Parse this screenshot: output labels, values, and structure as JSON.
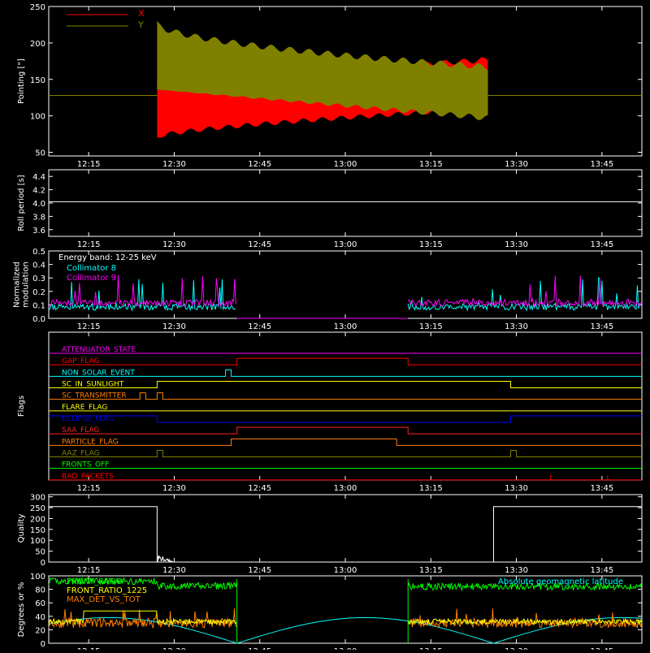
{
  "time_ticks": [
    "12:15",
    "12:30",
    "12:45",
    "13:00",
    "13:15",
    "13:30",
    "13:45"
  ],
  "colors": {
    "axis": "#ffffff",
    "x": "#ff0000",
    "y": "#808000",
    "roll": "#ffffff",
    "collimator8": "#00ffff",
    "collimator9": "#ff00ff",
    "quality": "#ffffff",
    "front_ratio": "#00ff00",
    "front_ratio_1225": "#ffff00",
    "max_det": "#ff8000",
    "latitude": "#00ffff"
  },
  "chart_data": [
    {
      "id": "pointing",
      "type": "area",
      "ylabel": "Pointing [\"]",
      "ylim": [
        45,
        250
      ],
      "yticks": [
        50,
        100,
        150,
        200,
        250
      ],
      "xlim": [
        "12:08",
        "13:52"
      ],
      "legend": {
        "placement": "top-left",
        "items": [
          "X",
          "Y"
        ]
      },
      "series": [
        {
          "name": "X",
          "center": 128,
          "start": "12:27",
          "end": "13:25",
          "amplitude_start": 70,
          "amplitude_end": 47,
          "color": "x"
        },
        {
          "name": "Y",
          "center": 128,
          "start": "12:27",
          "end": "13:25",
          "amplitude_start": 95,
          "amplitude_end": 25,
          "color": "y"
        }
      ],
      "baseline": {
        "value": 128,
        "before": "12:27",
        "after": "13:25"
      }
    },
    {
      "id": "roll",
      "type": "line",
      "ylabel": "Roll period [s]",
      "ylim": [
        3.5,
        4.5
      ],
      "yticks": [
        3.6,
        3.8,
        4.0,
        4.2,
        4.4
      ],
      "ytick_labels": [
        "3.6",
        "3.8",
        "4.0",
        "4.2",
        "4.4"
      ],
      "value": 4.02
    },
    {
      "id": "modulation",
      "type": "line",
      "ylabel_lines": [
        "Normalized",
        "modulation"
      ],
      "ylim": [
        0,
        0.5
      ],
      "yticks": [
        0,
        0.1,
        0.2,
        0.3,
        0.4,
        0.5
      ],
      "ytick_labels": [
        "0.0",
        "0.1",
        "0.2",
        "0.3",
        "0.4",
        "0.5"
      ],
      "legend": {
        "placement": "top-left",
        "title": "Energy band: 12-25 keV",
        "items": [
          "Collimator 8",
          "Collimator 9"
        ]
      },
      "active_intervals": [
        [
          "12:08",
          "12:41"
        ],
        [
          "13:11",
          "13:52"
        ]
      ],
      "baseline_level": 0.08
    },
    {
      "id": "flags",
      "type": "line",
      "ylabel": "Flags",
      "flags": [
        {
          "name": "ATTENUATOR_STATE",
          "color": "#ff00ff",
          "segments": [
            [
              "12:08",
              0
            ],
            [
              "13:52",
              0
            ]
          ]
        },
        {
          "name": "GAP_FLAG",
          "color": "#ff0000",
          "segments": [
            [
              "12:08",
              0
            ],
            [
              "12:41",
              1
            ],
            [
              "13:11",
              0
            ],
            [
              "13:52",
              0
            ]
          ]
        },
        {
          "name": "NON_SOLAR_EVENT",
          "color": "#00ffff",
          "segments": [
            [
              "12:08",
              0
            ],
            [
              "12:39",
              1
            ],
            [
              "12:40",
              0
            ],
            [
              "13:52",
              0
            ]
          ]
        },
        {
          "name": "SC_IN_SUNLIGHT",
          "color": "#ffff00",
          "segments": [
            [
              "12:08",
              0
            ],
            [
              "12:27",
              1
            ],
            [
              "13:29",
              0
            ],
            [
              "13:52",
              0
            ]
          ]
        },
        {
          "name": "SC_TRANSMITTER",
          "color": "#ff8000",
          "segments": [
            [
              "12:08",
              0
            ],
            [
              "12:24",
              1
            ],
            [
              "12:25",
              0
            ],
            [
              "12:27",
              1
            ],
            [
              "12:28",
              0
            ],
            [
              "13:52",
              0
            ]
          ]
        },
        {
          "name": "FLARE_FLAG",
          "color": "#ffff00",
          "segments": [
            [
              "12:08",
              0
            ],
            [
              "13:52",
              0
            ]
          ]
        },
        {
          "name": "ECLIPSE_FLAG",
          "color": "#0000ff",
          "segments": [
            [
              "12:08",
              1
            ],
            [
              "12:27",
              0
            ],
            [
              "13:29",
              1
            ],
            [
              "13:52",
              1
            ]
          ]
        },
        {
          "name": "SAA_FLAG",
          "color": "#ff2020",
          "segments": [
            [
              "12:08",
              0
            ],
            [
              "12:41",
              1
            ],
            [
              "13:11",
              0
            ],
            [
              "13:52",
              0
            ]
          ]
        },
        {
          "name": "PARTICLE_FLAG",
          "color": "#ff8000",
          "segments": [
            [
              "12:08",
              0
            ],
            [
              "12:40",
              1
            ],
            [
              "13:09",
              0
            ],
            [
              "13:52",
              0
            ]
          ]
        },
        {
          "name": "AAZ_FLAG",
          "color": "#808000",
          "segments": [
            [
              "12:08",
              0
            ],
            [
              "12:27",
              1
            ],
            [
              "12:28",
              0
            ],
            [
              "13:29",
              1
            ],
            [
              "13:30",
              0
            ],
            [
              "13:52",
              0
            ]
          ]
        },
        {
          "name": "FRONTS_OFF",
          "color": "#00ff00",
          "segments": [
            [
              "12:08",
              0
            ],
            [
              "13:52",
              0
            ]
          ]
        },
        {
          "name": "BAD_PACKETS",
          "color": "#ff0000",
          "segments": [
            [
              "12:08",
              0
            ],
            [
              "13:52",
              0
            ]
          ],
          "spikes": [
            "13:36",
            "13:46"
          ]
        }
      ]
    },
    {
      "id": "quality",
      "type": "line",
      "ylabel": "Quality",
      "ylim": [
        0,
        310
      ],
      "yticks": [
        0,
        50,
        100,
        150,
        200,
        250,
        300
      ],
      "levels": [
        [
          "12:08",
          255
        ],
        [
          "12:27",
          0
        ],
        [
          "13:26",
          255
        ],
        [
          "13:52",
          255
        ]
      ]
    },
    {
      "id": "ratios",
      "type": "line",
      "ylabel": "Degrees or %",
      "ylim": [
        0,
        100
      ],
      "yticks": [
        0,
        20,
        40,
        60,
        80,
        100
      ],
      "legend": {
        "placement": "top-left",
        "items": [
          "FRONT_RATIO",
          "FRONT_RATIO_1225",
          "MAX_DET_VS_TOT"
        ]
      },
      "annotation": "Absolute geomagnetic latitude",
      "series": [
        {
          "name": "FRONT_RATIO",
          "color": "front_ratio",
          "level_before": 92,
          "level_after": 82
        },
        {
          "name": "FRONT_RATIO_1225",
          "color": "front_ratio_1225",
          "level": 48
        },
        {
          "name": "MAX_DET_VS_TOT",
          "color": "max_det",
          "level": 30
        },
        {
          "name": "Absolute geomagnetic latitude",
          "color": "latitude",
          "peaks": [
            [
              "12:12",
              40
            ],
            [
              "12:41",
              0
            ],
            [
              "13:00",
              35
            ],
            [
              "13:26",
              0
            ],
            [
              "13:45",
              30
            ]
          ]
        }
      ],
      "active_intervals": [
        [
          "12:08",
          "12:41"
        ],
        [
          "13:11",
          "13:52"
        ]
      ]
    }
  ]
}
